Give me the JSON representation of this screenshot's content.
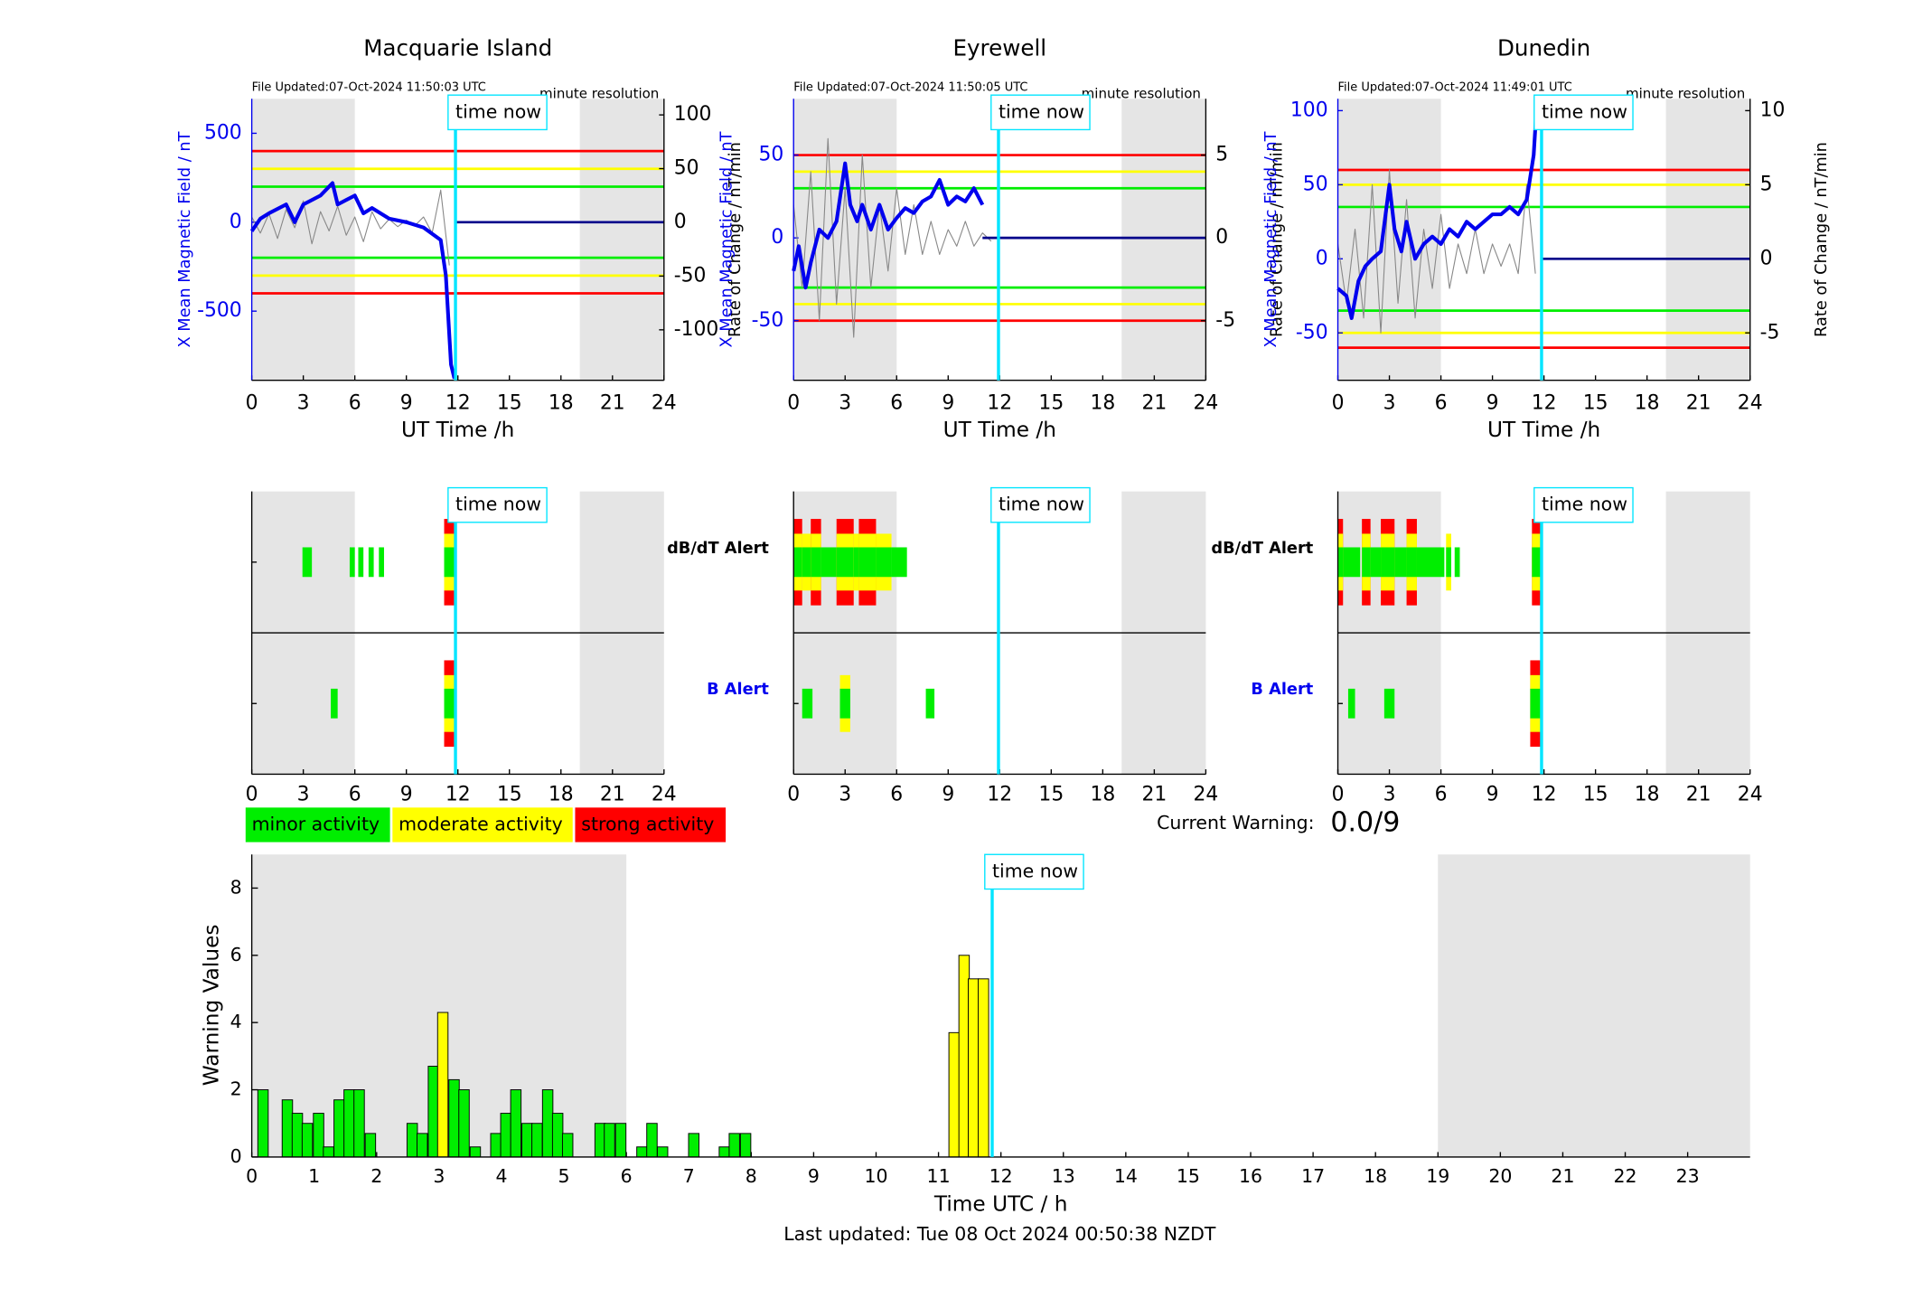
{
  "chart_data": [
    {
      "type": "line",
      "title": "Macquarie Island",
      "file_updated": "File Updated:07-Oct-2024 11:50:03 UTC",
      "resolution": "minute resolution",
      "xlabel": "UT Time /h",
      "ylabel": "X Mean Magnetic Field / nT",
      "y2label": "Rate of Change / nT/min",
      "xlim": [
        0,
        24
      ],
      "xticks": [
        0,
        3,
        6,
        9,
        12,
        15,
        18,
        21,
        24
      ],
      "ylim": [
        -889,
        694
      ],
      "yticks": [
        -500,
        0,
        500
      ],
      "y2lim": [
        -147,
        115
      ],
      "y2ticks": [
        -100,
        -50,
        0,
        50,
        100
      ],
      "shade": [
        [
          0,
          6
        ],
        [
          19.1,
          24
        ]
      ],
      "thresholds": {
        "values": [
          400,
          300,
          200,
          -200,
          -300,
          -400
        ],
        "colors": [
          "#ff0000",
          "#ffff00",
          "#00ee00",
          "#00ee00",
          "#ffff00",
          "#ff0000"
        ]
      },
      "time_now": 11.86,
      "time_now_label": "time now",
      "series": [
        {
          "color": "#888888",
          "axis": "y2",
          "width": 0.8,
          "x": [
            0,
            0.5,
            1,
            1.5,
            2,
            2.5,
            3,
            3.5,
            4,
            4.5,
            5,
            5.5,
            6,
            6.5,
            7,
            7.5,
            8,
            8.5,
            9,
            9.5,
            10,
            10.5,
            11,
            11.5
          ],
          "values": [
            5,
            -10,
            8,
            -15,
            12,
            -5,
            20,
            -20,
            10,
            -8,
            15,
            -12,
            5,
            -18,
            10,
            -6,
            3,
            -4,
            2,
            -3,
            5,
            -10,
            30,
            -40
          ]
        },
        {
          "color": "#0000ee",
          "width": 3,
          "x": [
            0,
            0.5,
            1,
            2,
            2.5,
            3,
            4,
            4.7,
            5,
            6,
            6.5,
            7,
            8,
            9,
            10,
            11,
            11.3,
            11.6,
            11.8
          ],
          "values": [
            -50,
            20,
            50,
            100,
            0,
            100,
            150,
            220,
            100,
            150,
            50,
            80,
            20,
            0,
            -30,
            -100,
            -300,
            -800,
            -880
          ]
        },
        {
          "color": "#00008b",
          "width": 2,
          "x": [
            11.86,
            24
          ],
          "values": [
            0,
            0
          ]
        }
      ]
    },
    {
      "type": "line",
      "title": "Eyrewell",
      "file_updated": "File Updated:07-Oct-2024 11:50:05 UTC",
      "resolution": "minute resolution",
      "xlabel": "UT Time /h",
      "ylabel": "X Mean Magnetic Field / nT",
      "y2label": "Rate of Change / nT/min",
      "xlim": [
        0,
        24
      ],
      "xticks": [
        0,
        3,
        6,
        9,
        12,
        15,
        18,
        21,
        24
      ],
      "ylim": [
        -86,
        84
      ],
      "yticks": [
        -50,
        0,
        50
      ],
      "y2lim": [
        -8.6,
        8.4
      ],
      "y2ticks": [
        -5,
        0,
        5
      ],
      "shade": [
        [
          0,
          6
        ],
        [
          19.1,
          24
        ]
      ],
      "thresholds": {
        "values": [
          50,
          40,
          30,
          -30,
          -40,
          -50
        ],
        "colors": [
          "#ff0000",
          "#ffff00",
          "#00ee00",
          "#00ee00",
          "#ffff00",
          "#ff0000"
        ]
      },
      "time_now": 11.93,
      "time_now_label": "time now",
      "series": [
        {
          "color": "#888888",
          "axis": "y2",
          "width": 0.8,
          "x": [
            0,
            0.5,
            1,
            1.5,
            2,
            2.5,
            3,
            3.5,
            4,
            4.5,
            5,
            5.5,
            6,
            6.5,
            7,
            7.5,
            8,
            8.5,
            9,
            9.5,
            10,
            10.5,
            11,
            11.5
          ],
          "values": [
            2,
            -3,
            4,
            -5,
            6,
            -4,
            3,
            -6,
            5,
            -3,
            2,
            -2,
            3,
            -1,
            2,
            -1,
            1,
            -1,
            0.5,
            -0.5,
            1,
            -0.5,
            0.3,
            -0.2
          ]
        },
        {
          "color": "#0000ee",
          "width": 3,
          "x": [
            0,
            0.3,
            0.7,
            1,
            1.5,
            2,
            2.5,
            3,
            3.3,
            3.7,
            4,
            4.5,
            5,
            5.5,
            6,
            6.5,
            7,
            7.5,
            8,
            8.5,
            9,
            9.5,
            10,
            10.5,
            11
          ],
          "values": [
            -20,
            -5,
            -30,
            -15,
            5,
            0,
            10,
            45,
            20,
            10,
            20,
            5,
            20,
            5,
            12,
            18,
            15,
            22,
            25,
            35,
            20,
            25,
            22,
            30,
            20
          ]
        },
        {
          "color": "#00008b",
          "width": 2,
          "x": [
            11,
            24
          ],
          "values": [
            0,
            0
          ]
        }
      ]
    },
    {
      "type": "line",
      "title": "Dunedin",
      "file_updated": "File Updated:07-Oct-2024 11:49:01 UTC",
      "resolution": "minute resolution",
      "xlabel": "UT Time /h",
      "ylabel": "X Mean Magnetic Field / nT",
      "y2label": "Rate of Change / nT/min",
      "xlim": [
        0,
        24
      ],
      "xticks": [
        0,
        3,
        6,
        9,
        12,
        15,
        18,
        21,
        24
      ],
      "ylim": [
        -82,
        108
      ],
      "yticks": [
        -50,
        0,
        50,
        100
      ],
      "y2lim": [
        -8.2,
        10.8
      ],
      "y2ticks": [
        -5,
        0,
        5,
        10
      ],
      "shade": [
        [
          0,
          6
        ],
        [
          19.1,
          24
        ]
      ],
      "thresholds": {
        "values": [
          60,
          50,
          35,
          -35,
          -50,
          -60
        ],
        "colors": [
          "#ff0000",
          "#ffff00",
          "#00ee00",
          "#00ee00",
          "#ffff00",
          "#ff0000"
        ]
      },
      "time_now": 11.86,
      "time_now_label": "time now",
      "series": [
        {
          "color": "#888888",
          "axis": "y2",
          "width": 0.8,
          "x": [
            0,
            0.5,
            1,
            1.5,
            2,
            2.5,
            3,
            3.5,
            4,
            4.5,
            5,
            5.5,
            6,
            6.5,
            7,
            7.5,
            8,
            8.5,
            9,
            9.5,
            10,
            10.5,
            11,
            11.5
          ],
          "values": [
            1,
            -3,
            2,
            -4,
            5,
            -5,
            6,
            -3,
            4,
            -4,
            2,
            -2,
            3,
            -2,
            1,
            -1,
            2,
            -1,
            1,
            -0.5,
            1,
            -1,
            5,
            -1
          ]
        },
        {
          "color": "#0000ee",
          "width": 3,
          "x": [
            0,
            0.5,
            0.8,
            1.2,
            1.6,
            2,
            2.5,
            3,
            3.3,
            3.7,
            4,
            4.5,
            5,
            5.5,
            6,
            6.5,
            7,
            7.5,
            8,
            8.5,
            9,
            9.5,
            10,
            10.5,
            11,
            11.4,
            11.6
          ],
          "values": [
            -20,
            -25,
            -40,
            -15,
            -5,
            0,
            5,
            50,
            20,
            5,
            25,
            0,
            10,
            15,
            10,
            20,
            15,
            25,
            20,
            25,
            30,
            30,
            35,
            30,
            40,
            70,
            108
          ]
        },
        {
          "color": "#00008b",
          "width": 2,
          "x": [
            11.86,
            24
          ],
          "values": [
            0,
            0
          ]
        }
      ]
    },
    {
      "type": "alert",
      "xlim": [
        0,
        24
      ],
      "xticks": [
        0,
        3,
        6,
        9,
        12,
        15,
        18,
        21,
        24
      ],
      "shade": [
        [
          0,
          6
        ],
        [
          19.1,
          24
        ]
      ],
      "time_now": 11.86,
      "time_now_label": "time now",
      "rows": [
        {
          "events": [
            {
              "start": 2.95,
              "end": 3.5,
              "level": 1
            },
            {
              "start": 5.7,
              "end": 6.0,
              "level": 1
            },
            {
              "start": 6.2,
              "end": 6.5,
              "level": 1
            },
            {
              "start": 6.8,
              "end": 7.1,
              "level": 1
            },
            {
              "start": 7.4,
              "end": 7.7,
              "level": 1
            },
            {
              "start": 11.2,
              "end": 11.9,
              "level": 3
            }
          ]
        },
        {
          "events": [
            {
              "start": 4.6,
              "end": 5.0,
              "level": 1
            },
            {
              "start": 11.2,
              "end": 11.9,
              "level": 3
            }
          ]
        }
      ]
    },
    {
      "type": "alert",
      "xlim": [
        0,
        24
      ],
      "xticks": [
        0,
        3,
        6,
        9,
        12,
        15,
        18,
        21,
        24
      ],
      "shade": [
        [
          0,
          6
        ],
        [
          19.1,
          24
        ]
      ],
      "time_now": 11.93,
      "time_now_label": "time now",
      "rows": [
        {
          "label": "dB/dT Alert",
          "label_color": "#000000",
          "events": [
            {
              "start": 0,
              "end": 0.5,
              "level": 3
            },
            {
              "start": 0.5,
              "end": 1.0,
              "level": 2
            },
            {
              "start": 1.0,
              "end": 1.6,
              "level": 3
            },
            {
              "start": 1.6,
              "end": 2.5,
              "level": 1
            },
            {
              "start": 2.5,
              "end": 3.5,
              "level": 3
            },
            {
              "start": 3.5,
              "end": 3.8,
              "level": 2
            },
            {
              "start": 3.8,
              "end": 4.8,
              "level": 3
            },
            {
              "start": 4.8,
              "end": 5.7,
              "level": 2
            },
            {
              "start": 5.7,
              "end": 6.6,
              "level": 1
            }
          ]
        },
        {
          "label": "B Alert",
          "label_color": "#0000ee",
          "events": [
            {
              "start": 0.5,
              "end": 1.1,
              "level": 1
            },
            {
              "start": 2.7,
              "end": 3.3,
              "level": 2
            },
            {
              "start": 7.7,
              "end": 8.2,
              "level": 1
            }
          ]
        }
      ]
    },
    {
      "type": "alert",
      "xlim": [
        0,
        24
      ],
      "xticks": [
        0,
        3,
        6,
        9,
        12,
        15,
        18,
        21,
        24
      ],
      "shade": [
        [
          0,
          6
        ],
        [
          19.1,
          24
        ]
      ],
      "time_now": 11.86,
      "time_now_label": "time now",
      "rows": [
        {
          "label": "dB/dT Alert",
          "label_color": "#000000",
          "events": [
            {
              "start": 0,
              "end": 0.3,
              "level": 3
            },
            {
              "start": 0.3,
              "end": 1.3,
              "level": 1
            },
            {
              "start": 1.4,
              "end": 1.9,
              "level": 3
            },
            {
              "start": 1.9,
              "end": 2.5,
              "level": 1
            },
            {
              "start": 2.5,
              "end": 3.3,
              "level": 3
            },
            {
              "start": 3.3,
              "end": 4.0,
              "level": 1
            },
            {
              "start": 4.0,
              "end": 4.6,
              "level": 3
            },
            {
              "start": 4.6,
              "end": 6.2,
              "level": 1
            },
            {
              "start": 6.3,
              "end": 6.6,
              "level": 2
            },
            {
              "start": 6.8,
              "end": 7.1,
              "level": 1
            },
            {
              "start": 11.3,
              "end": 11.8,
              "level": 3
            }
          ]
        },
        {
          "label": "B Alert",
          "label_color": "#0000ee",
          "events": [
            {
              "start": 0.6,
              "end": 1.0,
              "level": 1
            },
            {
              "start": 2.7,
              "end": 3.3,
              "level": 1
            },
            {
              "start": 11.2,
              "end": 11.9,
              "level": 3
            }
          ]
        }
      ]
    },
    {
      "type": "bar",
      "xlabel": "Time UTC / h",
      "ylabel": "Warning Values",
      "xlim": [
        0,
        24
      ],
      "xticks": [
        0,
        1,
        2,
        3,
        4,
        5,
        6,
        7,
        8,
        9,
        10,
        11,
        12,
        13,
        14,
        15,
        16,
        17,
        18,
        19,
        20,
        21,
        22,
        23
      ],
      "ylim": [
        0,
        9
      ],
      "yticks": [
        0,
        2,
        4,
        6,
        8
      ],
      "shade": [
        [
          0,
          6
        ],
        [
          19,
          24
        ]
      ],
      "time_now": 11.86,
      "time_now_label": "time now",
      "color": "#00ee00",
      "high_color": "#ffff00",
      "high_from": 3,
      "x": [
        0.18,
        0.57,
        0.73,
        0.89,
        1.07,
        1.23,
        1.4,
        1.56,
        1.72,
        1.9,
        2.57,
        2.73,
        2.91,
        3.06,
        3.24,
        3.4,
        3.58,
        3.91,
        4.07,
        4.23,
        4.41,
        4.57,
        4.74,
        4.9,
        5.06,
        5.58,
        5.73,
        5.91,
        6.25,
        6.41,
        6.58,
        7.08,
        7.57,
        7.73,
        7.91,
        11.25,
        11.41,
        11.56,
        11.72
      ],
      "values": [
        2,
        1.7,
        1.3,
        1,
        1.3,
        0.3,
        1.7,
        2,
        2,
        0.7,
        1,
        0.7,
        2.7,
        4.3,
        2.3,
        2,
        0.3,
        0.7,
        1.3,
        2,
        1,
        1,
        2,
        1.3,
        0.7,
        1,
        1,
        1,
        0.3,
        1,
        0.3,
        0.7,
        0.3,
        0.7,
        0.7,
        3.7,
        6,
        5.3,
        5.3
      ]
    }
  ],
  "legend": [
    {
      "label": "minor activity",
      "color": "#00ee00"
    },
    {
      "label": "moderate activity",
      "color": "#ffff00"
    },
    {
      "label": "strong activity",
      "color": "#ff0000"
    }
  ],
  "current_warning": {
    "label": "Current Warning:",
    "value": "0.0/9"
  },
  "footer": "Last updated: Tue 08 Oct 2024 00:50:38 NZDT"
}
